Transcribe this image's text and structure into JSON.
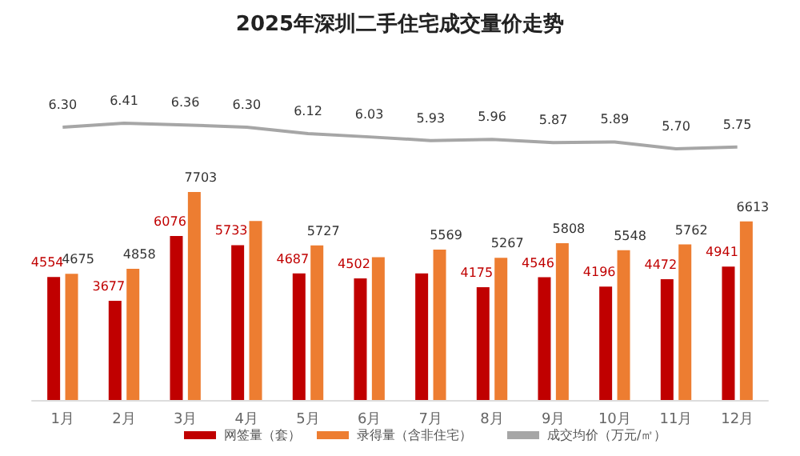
{
  "chart_data": [
    {
      "type": "line",
      "title": "2025年深圳二手住宅成交量价走势",
      "categories": [
        null,
        null,
        null,
        null,
        null,
        null,
        null,
        null,
        null,
        null,
        null,
        null
      ],
      "series": [
        {
          "name": "成交均价（万元/㎡）",
          "color": "#a6a6a6",
          "values": [
            6.3,
            6.41,
            6.36,
            6.3,
            6.12,
            6.03,
            5.93,
            5.96,
            5.87,
            5.89,
            5.7,
            5.75
          ],
          "value_labels": [
            "6.30",
            "6.41",
            "6.36",
            "6.30",
            "6.12",
            "6.03",
            "5.93",
            "5.96",
            "5.87",
            "5.89",
            "5.70",
            "5.75"
          ]
        }
      ],
      "marker": "none",
      "tick_labels": false,
      "grid": false,
      "legend": "bottom"
    },
    {
      "type": "bar",
      "categories": [
        "1月",
        "2月",
        "3月",
        "4月",
        "5月",
        "6月",
        "7月",
        "8月",
        "9月",
        "10月",
        "11月",
        "12月"
      ],
      "series": [
        {
          "name": "网签量（套）",
          "color": "#c00000",
          "values": [
            4554,
            3677,
            6076,
            5733,
            4687,
            4502,
            4690,
            4175,
            4546,
            4196,
            4472,
            4941
          ],
          "value_labels": [
            "4554",
            "3677",
            "6076",
            "5733",
            "4687",
            "4502",
            null,
            "4175",
            "4546",
            "4196",
            "4472",
            "4941"
          ]
        },
        {
          "name": "录得量（含非住宅）",
          "color": "#ed7d31",
          "values": [
            4675,
            4858,
            7703,
            6630,
            5727,
            5290,
            5569,
            5267,
            5808,
            5548,
            5762,
            6613
          ],
          "value_labels": [
            "4675",
            "4858",
            "7703",
            null,
            "5727",
            null,
            "5569",
            "5267",
            "5808",
            "5548",
            "5762",
            "6613"
          ]
        }
      ],
      "tick_labels": "x",
      "grid": false,
      "legend": "bottom"
    }
  ]
}
